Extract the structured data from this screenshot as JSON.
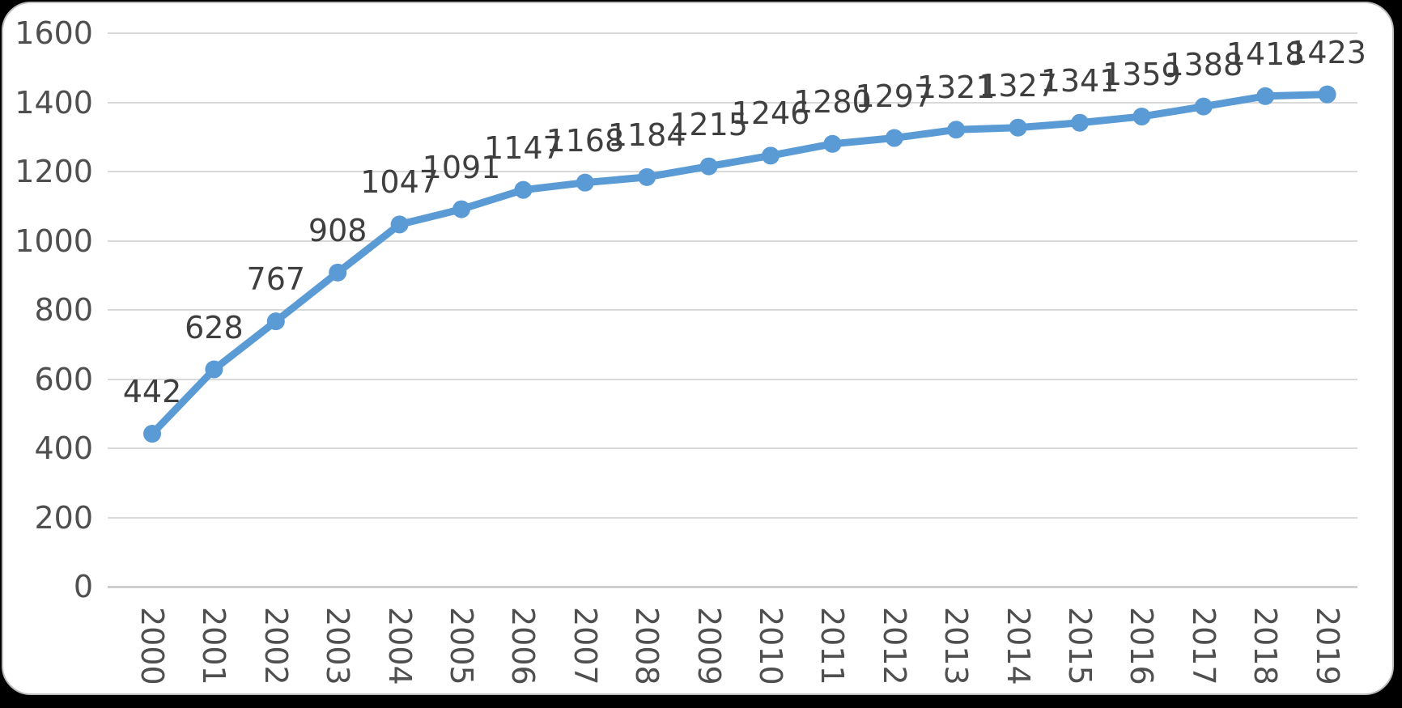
{
  "chart": {
    "outer_background": "#000000",
    "card_background": "#ffffff",
    "card_border_color": "#bdbdbd",
    "line_color": "#5b9bd5",
    "marker_color": "#5b9bd5",
    "gridline_color": "#d9d9d9",
    "axis_line_color": "#cfcfcf",
    "tick_label_color": "#4f4f4f",
    "data_label_color": "#3f3f3f"
  },
  "chart_data": {
    "type": "line",
    "title": "",
    "xlabel": "",
    "ylabel": "",
    "categories": [
      "2000",
      "2001",
      "2002",
      "2003",
      "2004",
      "2005",
      "2006",
      "2007",
      "2008",
      "2009",
      "2010",
      "2011",
      "2012",
      "2013",
      "2014",
      "2015",
      "2016",
      "2017",
      "2018",
      "2019"
    ],
    "values": [
      442,
      628,
      767,
      908,
      1047,
      1091,
      1147,
      1168,
      1184,
      1215,
      1246,
      1280,
      1297,
      1321,
      1327,
      1341,
      1359,
      1388,
      1418,
      1423
    ],
    "data_labels": [
      "442",
      "628",
      "767",
      "908",
      "1047",
      "1091",
      "1147",
      "1168",
      "1184",
      "1215",
      "1246",
      "1280",
      "1297",
      "1321",
      "1327",
      "1341",
      "1359",
      "1388",
      "1418",
      "1423"
    ],
    "y_ticks": [
      "0",
      "200",
      "400",
      "600",
      "800",
      "1000",
      "1200",
      "1400",
      "1600"
    ],
    "y_tick_values": [
      0,
      200,
      400,
      600,
      800,
      1000,
      1200,
      1400,
      1600
    ],
    "ylim": [
      0,
      1600
    ],
    "grid": "horizontal",
    "legend": "none",
    "marker": "circle",
    "data_label_position": "above",
    "x_label_rotation_deg": 90
  }
}
